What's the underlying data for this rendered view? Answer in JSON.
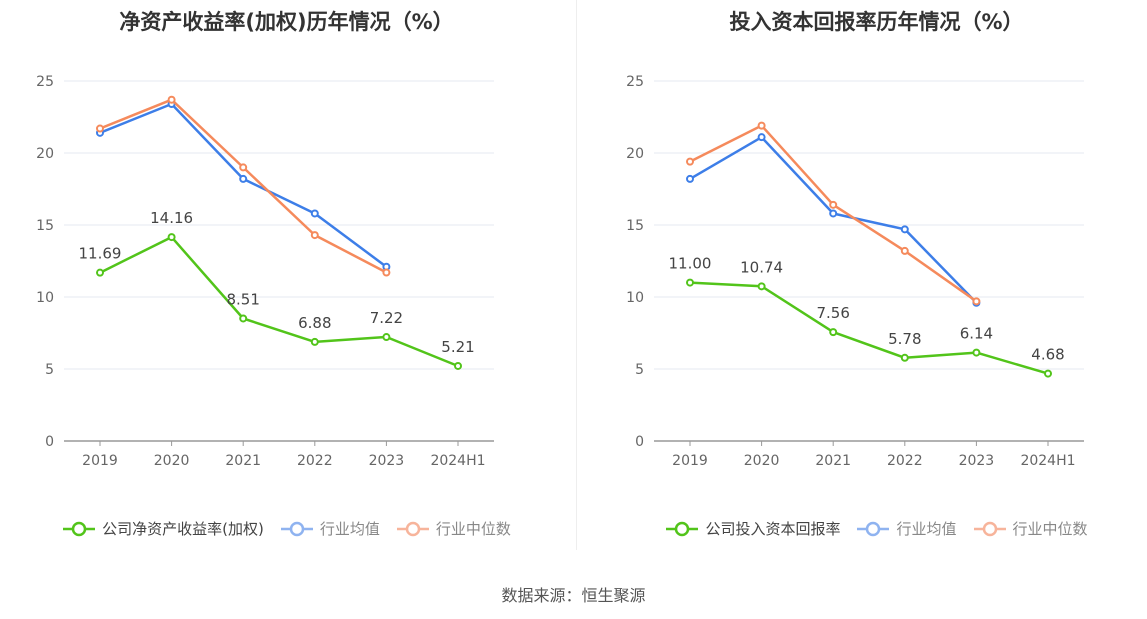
{
  "chart_data": [
    {
      "type": "line",
      "title": "净资产收益率(加权)历年情况（%）",
      "categories": [
        "2019",
        "2020",
        "2021",
        "2022",
        "2023",
        "2024H1"
      ],
      "ylim": [
        0,
        25
      ],
      "yticks": [
        0,
        5,
        10,
        15,
        20,
        25
      ],
      "grid": true,
      "legend_position": "bottom",
      "series": [
        {
          "name": "公司净资产收益率(加权)",
          "color": "#52c41a",
          "labels": true,
          "values": [
            11.69,
            14.16,
            8.51,
            6.88,
            7.22,
            5.21
          ],
          "value_labels": [
            "11.69",
            "14.16",
            "8.51",
            "6.88",
            "7.22",
            "5.21"
          ]
        },
        {
          "name": "行业均值",
          "color": "#3d7ee8",
          "labels": false,
          "values": [
            21.4,
            23.4,
            18.2,
            15.8,
            12.1,
            null
          ]
        },
        {
          "name": "行业中位数",
          "color": "#f58a5c",
          "labels": false,
          "values": [
            21.7,
            23.7,
            19.0,
            14.3,
            11.7,
            null
          ]
        }
      ]
    },
    {
      "type": "line",
      "title": "投入资本回报率历年情况（%）",
      "categories": [
        "2019",
        "2020",
        "2021",
        "2022",
        "2023",
        "2024H1"
      ],
      "ylim": [
        0,
        25
      ],
      "yticks": [
        0,
        5,
        10,
        15,
        20,
        25
      ],
      "grid": true,
      "legend_position": "bottom",
      "series": [
        {
          "name": "公司投入资本回报率",
          "color": "#52c41a",
          "labels": true,
          "values": [
            11.0,
            10.74,
            7.56,
            5.78,
            6.14,
            4.68
          ],
          "value_labels": [
            "11.00",
            "10.74",
            "7.56",
            "5.78",
            "6.14",
            "4.68"
          ]
        },
        {
          "name": "行业均值",
          "color": "#3d7ee8",
          "labels": false,
          "values": [
            18.2,
            21.1,
            15.8,
            14.7,
            9.6,
            null
          ]
        },
        {
          "name": "行业中位数",
          "color": "#f58a5c",
          "labels": false,
          "values": [
            19.4,
            21.9,
            16.4,
            13.2,
            9.7,
            null
          ]
        }
      ]
    }
  ],
  "source": "数据来源：恒生聚源"
}
